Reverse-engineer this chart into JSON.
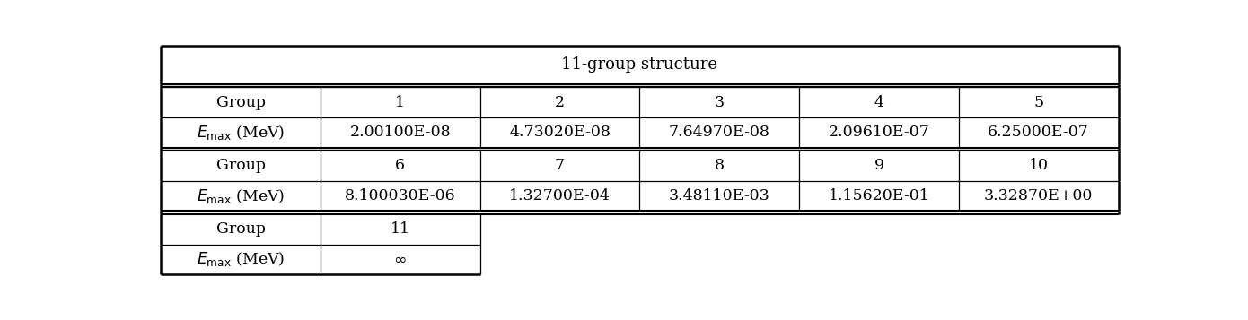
{
  "title": "11-group structure",
  "row1_labels": [
    "Group",
    "1",
    "2",
    "3",
    "4",
    "5"
  ],
  "row2_labels": [
    "$E_{\\mathrm{max}}$ (MeV)",
    "2.00100E-08",
    "4.73020E-08",
    "7.64970E-08",
    "2.09610E-07",
    "6.25000E-07"
  ],
  "row3_labels": [
    "Group",
    "6",
    "7",
    "8",
    "9",
    "10"
  ],
  "row4_labels": [
    "$E_{\\mathrm{max}}$ (MeV)",
    "8.100030E-06",
    "1.32700E-04",
    "3.48110E-03",
    "1.15620E-01",
    "3.32870E+00"
  ],
  "row5_labels": [
    "Group",
    "11"
  ],
  "row6_labels": [
    "$E_{\\mathrm{max}}$ (MeV)",
    "$\\infty$"
  ],
  "bg_color": "#ffffff",
  "text_color": "#000000",
  "fontsize": 12.5
}
